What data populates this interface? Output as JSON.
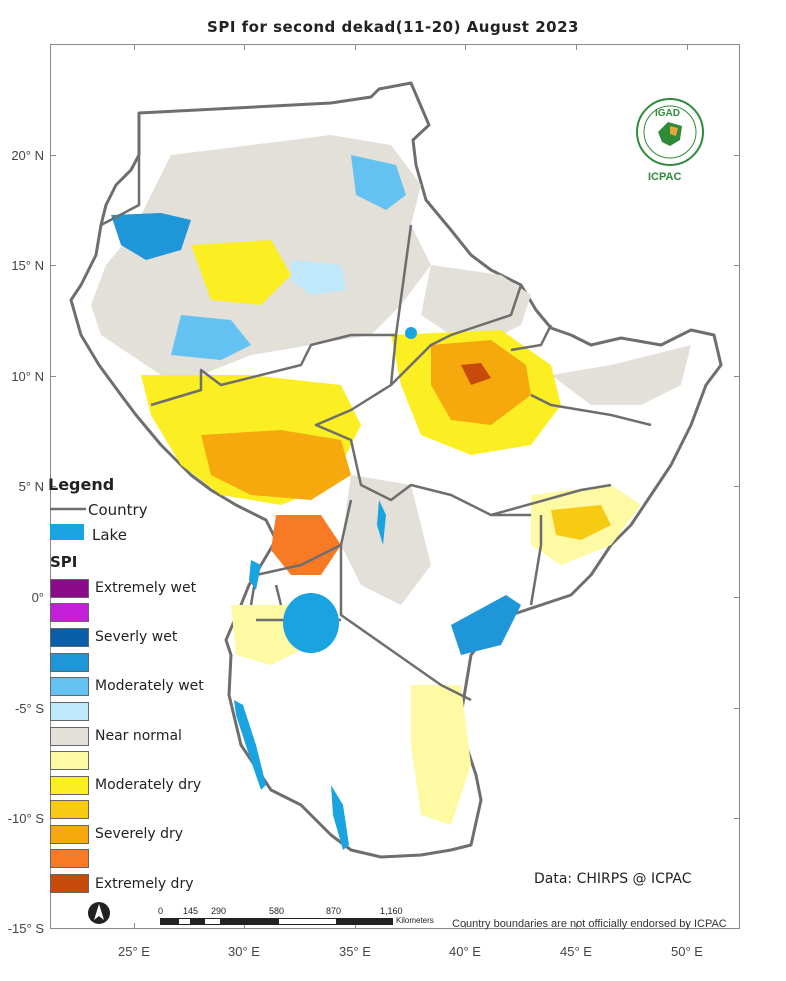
{
  "title": "SPI   for  second dekad(11-20)  August  2023",
  "axes": {
    "y_labels": [
      "20° N",
      "15° N",
      "10° N",
      "5° N",
      "0°",
      "-5° S",
      "-10° S",
      "-15° S"
    ],
    "x_labels": [
      "25° E",
      "30° E",
      "35° E",
      "40° E",
      "45° E",
      "50° E"
    ]
  },
  "legend": {
    "title": "Legend",
    "country_label": "Country",
    "lake_label": "Lake",
    "spi_title": "SPI",
    "classes": [
      {
        "label": "Extremely wet",
        "color": "#8a0a8a"
      },
      {
        "label": "",
        "color": "#c21fd6"
      },
      {
        "label": "Severly wet",
        "color": "#0a5fa8"
      },
      {
        "label": "",
        "color": "#1e96d8"
      },
      {
        "label": "Moderately wet",
        "color": "#63c2f2"
      },
      {
        "label": "",
        "color": "#bfe8fb"
      },
      {
        "label": "Near normal",
        "color": "#e2e0d8"
      },
      {
        "label": "",
        "color": "#fdfaa3"
      },
      {
        "label": "Moderately dry",
        "color": "#fbef23"
      },
      {
        "label": "",
        "color": "#f6cb12"
      },
      {
        "label": "Severely dry",
        "color": "#f5a90c"
      },
      {
        "label": "",
        "color": "#f97a25"
      },
      {
        "label": "Extremely dry",
        "color": "#c84a0a"
      }
    ]
  },
  "scale_bar": {
    "numbers": [
      "0",
      "145",
      "290",
      "580",
      "870",
      "1,160"
    ],
    "unit": "Kilometers"
  },
  "credit": "Data: CHIRPS @ ICPAC",
  "disclaimer": "Country boundaries are not officially endorsed by ICPAC",
  "logo": {
    "top_text": "IGAD",
    "bottom_text": "ICPAC"
  },
  "colors": {
    "border": "#6e6e6e",
    "lake": "#19a3e0",
    "north_arrow": "north-arrow-icon"
  }
}
